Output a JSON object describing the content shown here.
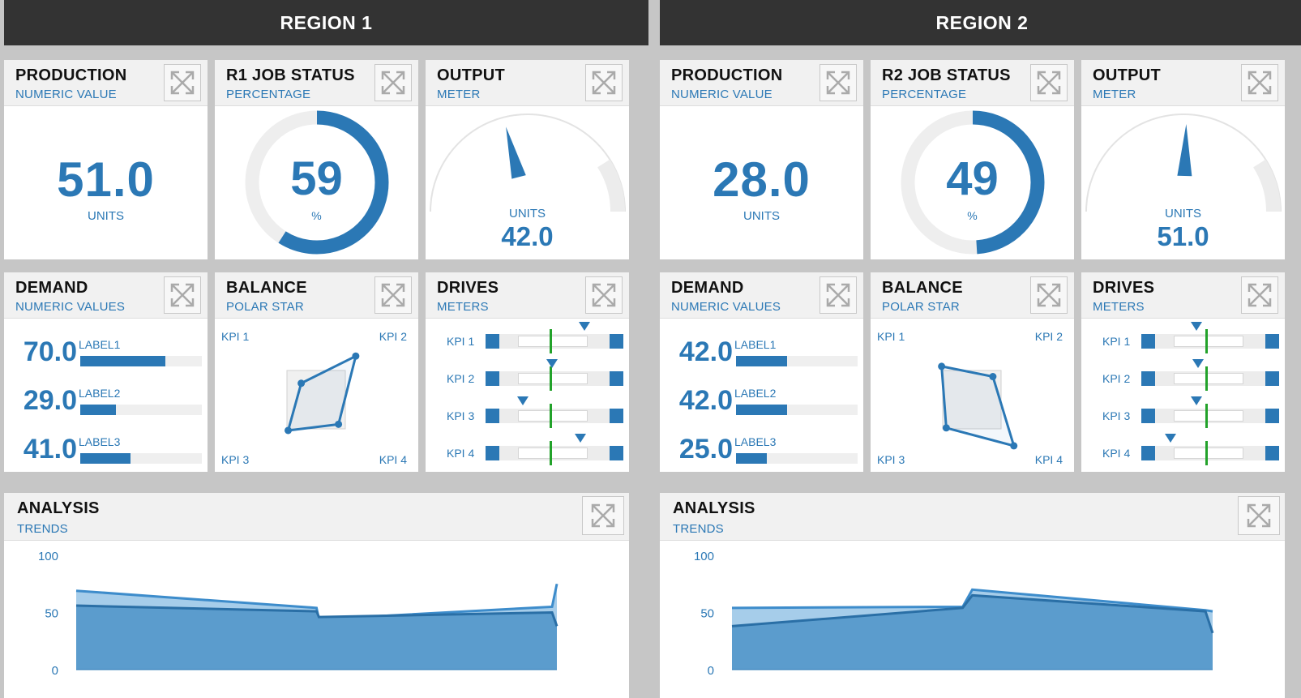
{
  "colors": {
    "accent": "#2b78b5",
    "header_bg": "#333333",
    "target": "#22a22a"
  },
  "regions": [
    {
      "title": "REGION 1",
      "production": {
        "title": "PRODUCTION",
        "subtitle": "NUMERIC VALUE",
        "value": "51.0",
        "unit": "UNITS"
      },
      "job_status": {
        "title": "R1 JOB STATUS",
        "subtitle": "PERCENTAGE",
        "value": "59",
        "unit": "%",
        "percent": 59
      },
      "output": {
        "title": "OUTPUT",
        "subtitle": "METER",
        "unit": "UNITS",
        "value": "42.0",
        "needle_fraction": 0.42
      },
      "demand": {
        "title": "DEMAND",
        "subtitle": "NUMERIC VALUES",
        "rows": [
          {
            "value": "70.0",
            "label": "LABEL1",
            "fraction": 0.7
          },
          {
            "value": "29.0",
            "label": "LABEL2",
            "fraction": 0.29
          },
          {
            "value": "41.0",
            "label": "LABEL3",
            "fraction": 0.41
          }
        ]
      },
      "balance": {
        "title": "BALANCE",
        "subtitle": "POLAR STAR",
        "kpi_labels": [
          "KPI 1",
          "KPI 2",
          "KPI 3",
          "KPI 4"
        ],
        "kpi_values": [
          0.32,
          0.85,
          0.6,
          0.48
        ]
      },
      "drives": {
        "title": "DRIVES",
        "subtitle": "METERS",
        "rows": [
          {
            "label": "KPI 1",
            "marker_fraction": 0.72,
            "target_fraction": 0.47
          },
          {
            "label": "KPI 2",
            "marker_fraction": 0.48,
            "target_fraction": 0.47
          },
          {
            "label": "KPI 3",
            "marker_fraction": 0.27,
            "target_fraction": 0.47
          },
          {
            "label": "KPI 4",
            "marker_fraction": 0.69,
            "target_fraction": 0.47
          }
        ]
      },
      "analysis": {
        "title": "ANALYSIS",
        "subtitle": "TRENDS"
      }
    },
    {
      "title": "REGION 2",
      "production": {
        "title": "PRODUCTION",
        "subtitle": "NUMERIC VALUE",
        "value": "28.0",
        "unit": "UNITS"
      },
      "job_status": {
        "title": "R2 JOB STATUS",
        "subtitle": "PERCENTAGE",
        "value": "49",
        "unit": "%",
        "percent": 49
      },
      "output": {
        "title": "OUTPUT",
        "subtitle": "METER",
        "unit": "UNITS",
        "value": "51.0",
        "needle_fraction": 0.51
      },
      "demand": {
        "title": "DEMAND",
        "subtitle": "NUMERIC VALUES",
        "rows": [
          {
            "value": "42.0",
            "label": "LABEL1",
            "fraction": 0.42
          },
          {
            "value": "42.0",
            "label": "LABEL2",
            "fraction": 0.42
          },
          {
            "value": "25.0",
            "label": "LABEL3",
            "fraction": 0.25
          }
        ]
      },
      "balance": {
        "title": "BALANCE",
        "subtitle": "POLAR STAR",
        "kpi_labels": [
          "KPI 1",
          "KPI 2",
          "KPI 3",
          "KPI 4"
        ],
        "kpi_values": [
          0.65,
          0.45,
          0.55,
          0.9
        ]
      },
      "drives": {
        "title": "DRIVES",
        "subtitle": "METERS",
        "rows": [
          {
            "label": "KPI 1",
            "marker_fraction": 0.4,
            "target_fraction": 0.47
          },
          {
            "label": "KPI 2",
            "marker_fraction": 0.41,
            "target_fraction": 0.47
          },
          {
            "label": "KPI 3",
            "marker_fraction": 0.4,
            "target_fraction": 0.47
          },
          {
            "label": "KPI 4",
            "marker_fraction": 0.21,
            "target_fraction": 0.47
          }
        ]
      },
      "analysis": {
        "title": "ANALYSIS",
        "subtitle": "TRENDS"
      }
    }
  ],
  "chart_data": [
    {
      "type": "area",
      "ylim": [
        0,
        100
      ],
      "y_ticks": [
        "0",
        "50",
        "100"
      ],
      "x": [
        0,
        0.5,
        0.505,
        0.99,
        1.0
      ],
      "series": [
        {
          "values": [
            69,
            54,
            44,
            55,
            75
          ]
        },
        {
          "values": [
            56,
            51,
            46,
            50,
            38
          ]
        }
      ]
    },
    {
      "type": "area",
      "ylim": [
        0,
        100
      ],
      "y_ticks": [
        "0",
        "50",
        "100"
      ],
      "x": [
        0,
        0.48,
        0.5,
        0.985,
        1.0
      ],
      "series": [
        {
          "values": [
            54,
            55,
            70,
            52,
            51
          ]
        },
        {
          "values": [
            38,
            54,
            65,
            51,
            32
          ]
        }
      ]
    }
  ]
}
